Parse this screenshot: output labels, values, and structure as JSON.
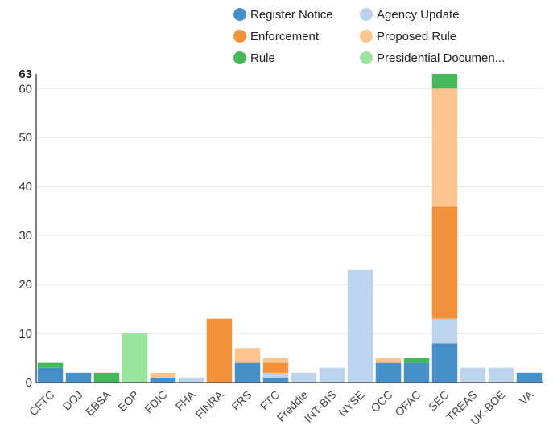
{
  "chart_data": {
    "type": "bar",
    "stacked": true,
    "categories": [
      "CFTC",
      "DOJ",
      "EBSA",
      "EOP",
      "FDIC",
      "FHA",
      "FINRA",
      "FRS",
      "FTC",
      "Freddie",
      "INT-BIS",
      "NYSE",
      "OCC",
      "OFAC",
      "SEC",
      "TREAS",
      "UK-BOE",
      "VA"
    ],
    "series": [
      {
        "name": "Register Notice",
        "color": "#4590c9",
        "values": [
          3,
          2,
          0,
          0,
          1,
          0,
          0,
          4,
          1,
          0,
          0,
          0,
          4,
          4,
          8,
          0,
          0,
          2
        ]
      },
      {
        "name": "Agency Update",
        "color": "#bcd3ee",
        "values": [
          0,
          0,
          0,
          0,
          0,
          1,
          0,
          0,
          1,
          2,
          3,
          23,
          0,
          0,
          5,
          3,
          3,
          0
        ]
      },
      {
        "name": "Enforcement",
        "color": "#f3903a",
        "values": [
          0,
          0,
          0,
          0,
          0,
          0,
          13,
          0,
          2,
          0,
          0,
          0,
          0,
          0,
          23,
          0,
          0,
          0
        ]
      },
      {
        "name": "Proposed Rule",
        "color": "#fdc58d",
        "values": [
          0,
          0,
          0,
          0,
          1,
          0,
          0,
          3,
          1,
          0,
          0,
          0,
          1,
          0,
          24,
          0,
          0,
          0
        ]
      },
      {
        "name": "Rule",
        "color": "#45b85a",
        "values": [
          1,
          0,
          2,
          0,
          0,
          0,
          0,
          0,
          0,
          0,
          0,
          0,
          0,
          1,
          3,
          0,
          0,
          0
        ]
      },
      {
        "name": "Presidential Documen...",
        "color": "#9ae49e",
        "values": [
          0,
          0,
          0,
          10,
          0,
          0,
          0,
          0,
          0,
          0,
          0,
          0,
          0,
          0,
          0,
          0,
          0,
          0
        ]
      }
    ],
    "yticks": [
      0,
      10,
      20,
      30,
      40,
      50,
      60
    ],
    "ymax_label": "63",
    "ylim": [
      0,
      63
    ],
    "grid": true,
    "legend_position": "top-right"
  }
}
